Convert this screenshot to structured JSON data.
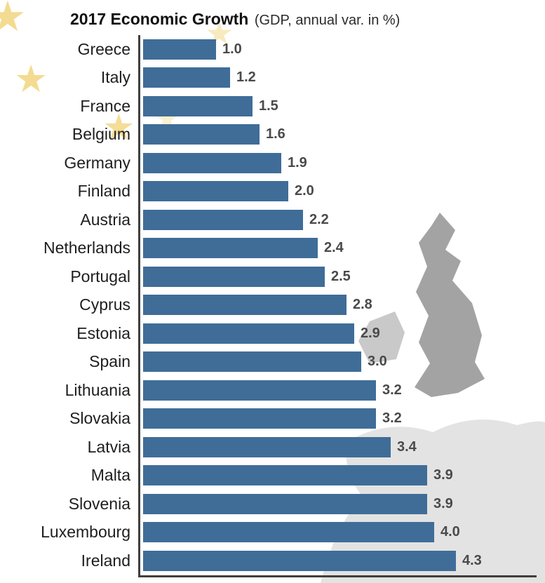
{
  "title": {
    "main": "2017 Economic Growth",
    "subtitle": "(GDP, annual var. in %)"
  },
  "chart_data": {
    "type": "bar",
    "orientation": "horizontal",
    "title": "2017 Economic Growth (GDP, annual var. in %)",
    "categories": [
      "Greece",
      "Italy",
      "France",
      "Belgium",
      "Germany",
      "Finland",
      "Austria",
      "Netherlands",
      "Portugal",
      "Cyprus",
      "Estonia",
      "Spain",
      "Lithuania",
      "Slovakia",
      "Latvia",
      "Malta",
      "Slovenia",
      "Luxembourg",
      "Ireland"
    ],
    "values": [
      1.0,
      1.2,
      1.5,
      1.6,
      1.9,
      2.0,
      2.2,
      2.4,
      2.5,
      2.8,
      2.9,
      3.0,
      3.2,
      3.2,
      3.4,
      3.9,
      3.9,
      4.0,
      4.3
    ],
    "value_labels": [
      "1.0",
      "1.2",
      "1.5",
      "1.6",
      "1.9",
      "2.0",
      "2.2",
      "2.4",
      "2.5",
      "2.8",
      "2.9",
      "3.0",
      "3.2",
      "3.2",
      "3.4",
      "3.9",
      "3.9",
      "4.0",
      "4.3"
    ],
    "xlabel": "",
    "ylabel": "",
    "xlim": [
      0,
      4.6
    ],
    "grid": false,
    "legend": false,
    "bar_color": "#3f6d98"
  },
  "colors": {
    "bar": "#3f6d98",
    "value_text": "#4a4a4a",
    "label_text": "#1e1e1e",
    "axis": "#3f3f3f",
    "star": "#f3da8c",
    "map_land": "#e3e3e3",
    "map_britain": "#a3a3a3",
    "map_ireland": "#c9c9c9"
  },
  "decor": {
    "star_glyph": "★"
  }
}
